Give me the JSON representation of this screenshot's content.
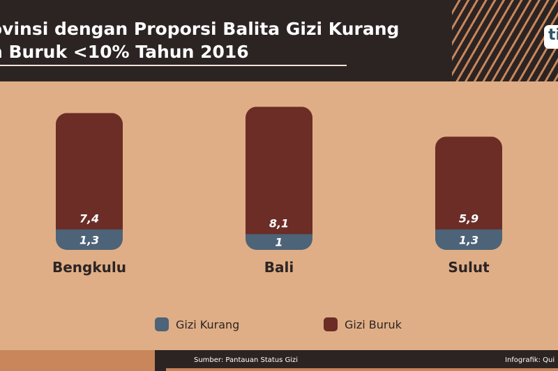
{
  "header": {
    "title_line1": "ovinsi dengan Proporsi Balita Gizi Kurang",
    "title_line2": "n Buruk <10% Tahun 2016",
    "logo_text": "ti"
  },
  "chart_data": {
    "type": "bar",
    "stacked": true,
    "categories": [
      "Bengkulu",
      "Bali",
      "Sulut"
    ],
    "series": [
      {
        "name": "Gizi Kurang",
        "values": [
          1.3,
          1,
          1.3
        ],
        "labels": [
          "1,3",
          "1",
          "1,3"
        ],
        "color": "#4d6378"
      },
      {
        "name": "Gizi Buruk",
        "values": [
          7.4,
          8.1,
          5.9
        ],
        "labels": [
          "7,4",
          "8,1",
          "5,9"
        ],
        "color": "#6b2d26"
      }
    ],
    "grid": false,
    "legend_position": "bottom"
  },
  "legend": {
    "item1": "Gizi Kurang",
    "item2": "Gizi Buruk"
  },
  "footer": {
    "source": "Sumber: Pantauan Status Gizi",
    "credit": "Infografik: Qui"
  }
}
